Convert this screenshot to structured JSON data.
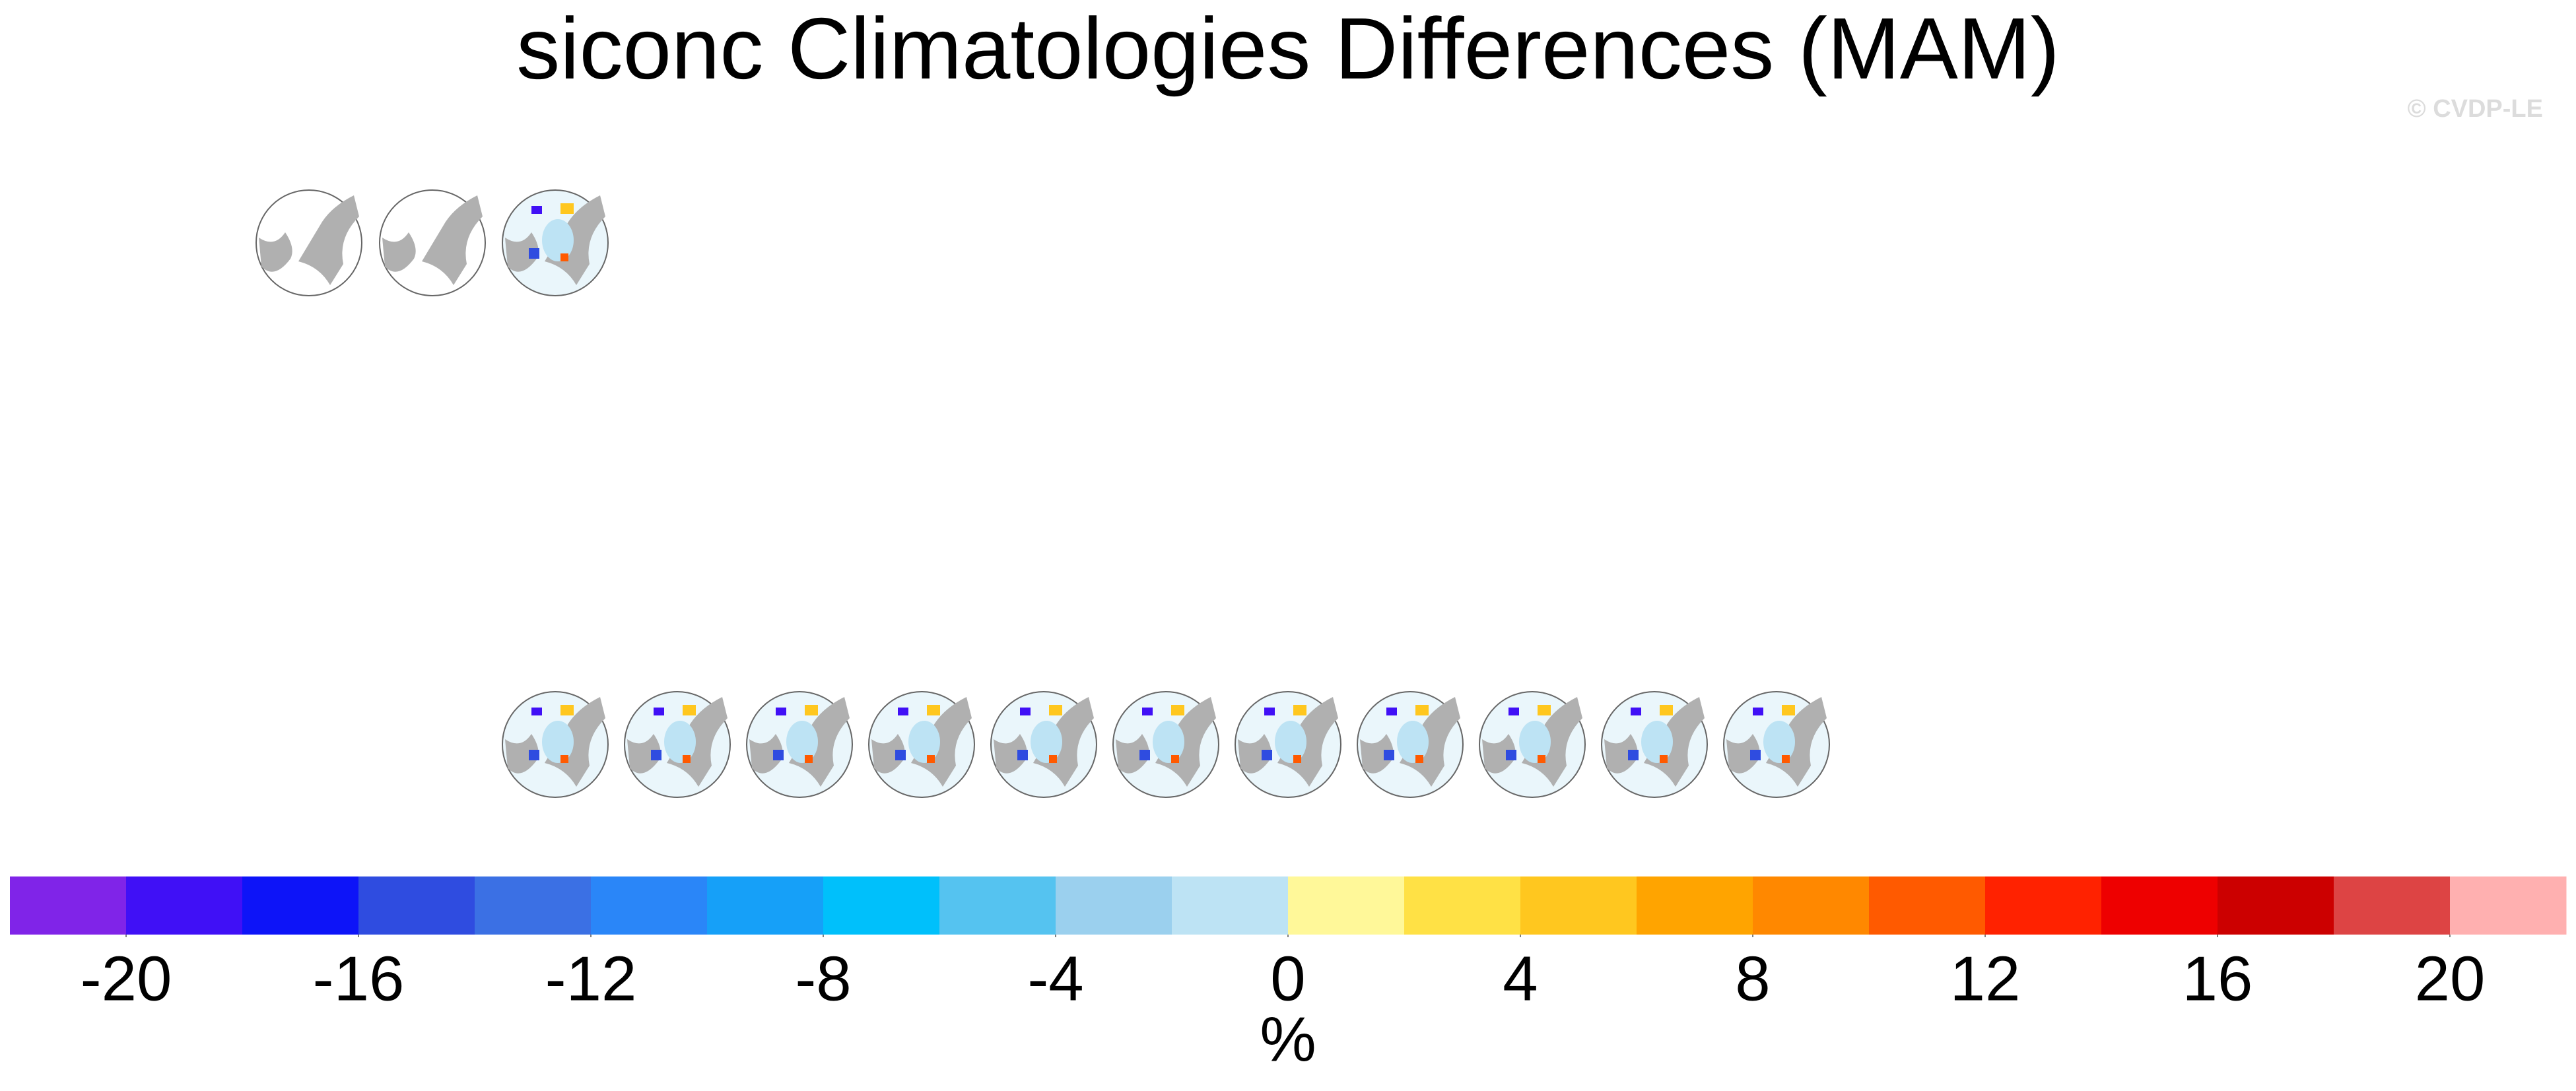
{
  "chart_data": {
    "type": "colorbar",
    "title": "siconc Climatologies Differences (MAM)",
    "watermark": "© CVDP-LE",
    "label": "%",
    "lim": [
      -22,
      22
    ],
    "bounds": [
      -22,
      -20,
      -18,
      -16,
      -14,
      -12,
      -10,
      -8,
      -6,
      -4,
      -2,
      0,
      2,
      4,
      6,
      8,
      10,
      12,
      14,
      16,
      18,
      20,
      22
    ],
    "colors": [
      "#8024e8",
      "#4010f6",
      "#0d14f8",
      "#2f4ce0",
      "#3b70e4",
      "#2a86f8",
      "#16a0f8",
      "#00c0fb",
      "#55c3f0",
      "#9bd0ee",
      "#bde3f4",
      "#fff899",
      "#ffe145",
      "#ffc71f",
      "#ffa400",
      "#ff8800",
      "#ff5a00",
      "#ff2200",
      "#ee0000",
      "#cc0000",
      "#dd4444",
      "#ffb0b0"
    ],
    "ticks": [
      -20,
      -16,
      -12,
      -8,
      -4,
      0,
      4,
      8,
      12,
      16,
      20
    ]
  }
}
